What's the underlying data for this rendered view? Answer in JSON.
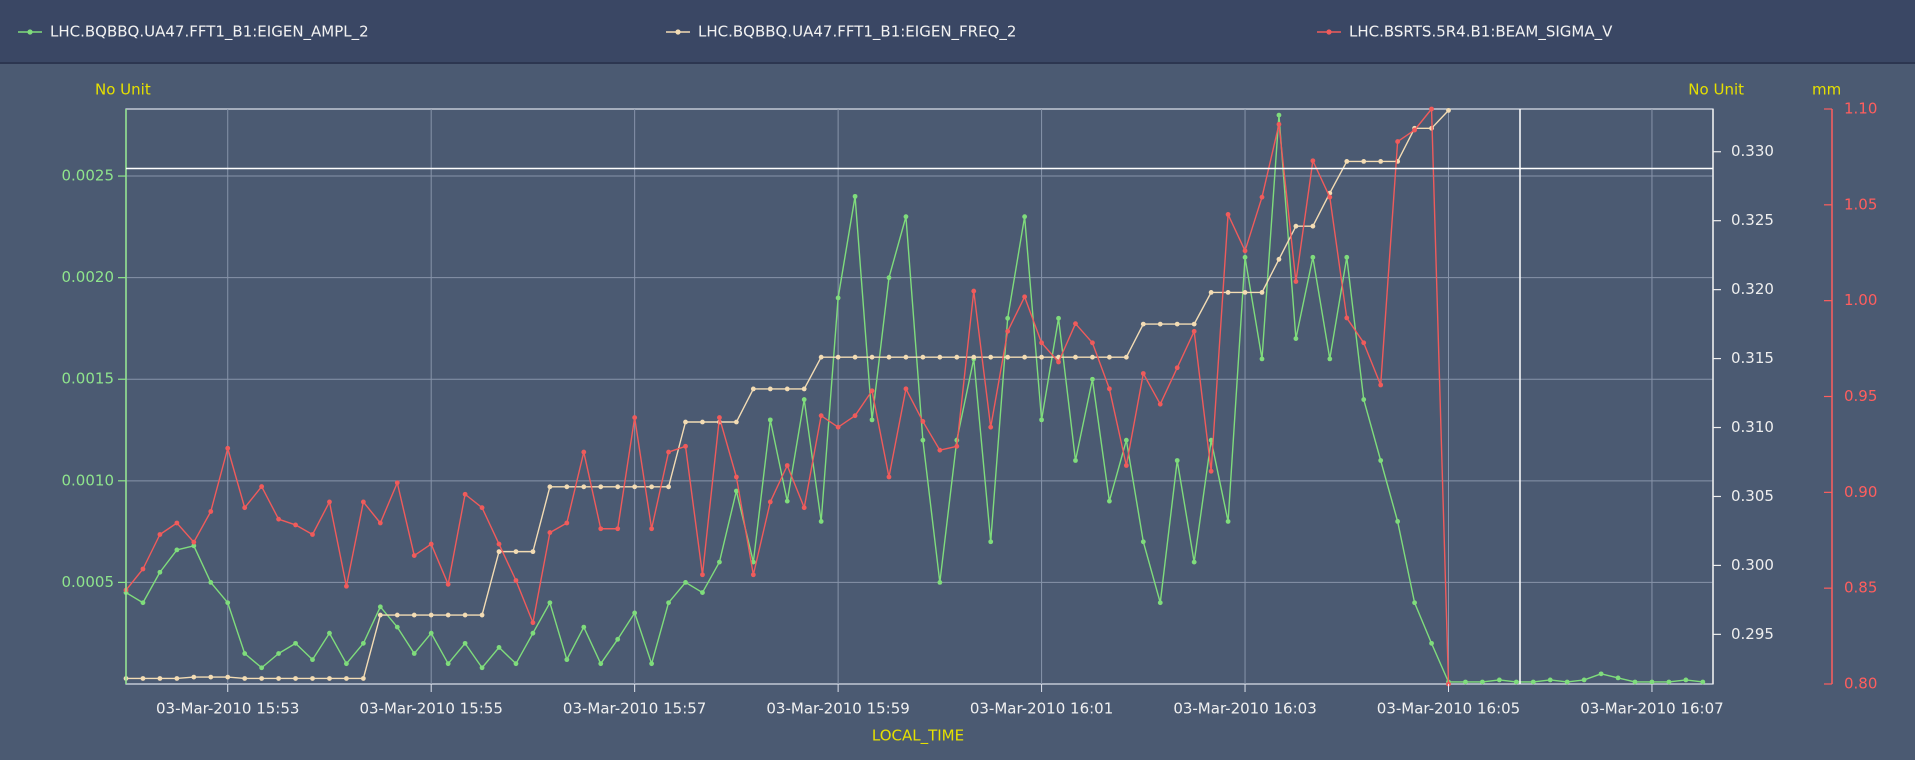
{
  "chart_data": {
    "type": "line",
    "xlabel": "LOCAL_TIME",
    "y_unit": "No Unit",
    "y2_unit": "No Unit",
    "y3_unit": "mm",
    "legend": "top",
    "grid": true,
    "xlim": [
      "15:52:00",
      "16:07:36"
    ],
    "xticks": [
      {
        "value": "15:53:00",
        "label": "03-Mar-2010 15:53"
      },
      {
        "value": "15:55:00",
        "label": "03-Mar-2010 15:55"
      },
      {
        "value": "15:57:00",
        "label": "03-Mar-2010 15:57"
      },
      {
        "value": "15:59:00",
        "label": "03-Mar-2010 15:59"
      },
      {
        "value": "16:01:00",
        "label": "03-Mar-2010 16:01"
      },
      {
        "value": "16:03:00",
        "label": "03-Mar-2010 16:03"
      },
      {
        "value": "16:05:00",
        "label": "03-Mar-2010 16:05"
      },
      {
        "value": "16:07:00",
        "label": "03-Mar-2010 16:07"
      }
    ],
    "ylim": [
      0,
      0.00283
    ],
    "yticks": [
      0.0005,
      {
        "value": 0.001,
        "label": "0.0010"
      },
      0.0015,
      {
        "value": 0.002,
        "label": "0.0020"
      },
      0.0025
    ],
    "y2lim": [
      0.2914,
      0.3331
    ],
    "y2ticks": [
      0.295,
      {
        "value": 0.3,
        "label": "0.300"
      },
      0.305,
      {
        "value": 0.31,
        "label": "0.310"
      },
      0.315,
      {
        "value": 0.32,
        "label": "0.320"
      },
      0.325,
      {
        "value": 0.33,
        "label": "0.330"
      }
    ],
    "y3lim": [
      0.8,
      1.1
    ],
    "y3ticks": [
      {
        "value": 0.8,
        "label": "0.80"
      },
      0.85,
      {
        "value": 0.9,
        "label": "0.90"
      },
      0.95,
      {
        "value": 1,
        "label": "1.00"
      },
      1.05,
      {
        "value": 1.1,
        "label": "1.10"
      }
    ],
    "x": [
      "15:52:00",
      "15:52:10",
      "15:52:20",
      "15:52:30",
      "15:52:40",
      "15:52:50",
      "15:53:00",
      "15:53:10",
      "15:53:20",
      "15:53:30",
      "15:53:40",
      "15:53:50",
      "15:54:00",
      "15:54:10",
      "15:54:20",
      "15:54:30",
      "15:54:40",
      "15:54:50",
      "15:55:00",
      "15:55:10",
      "15:55:20",
      "15:55:30",
      "15:55:40",
      "15:55:50",
      "15:56:00",
      "15:56:10",
      "15:56:20",
      "15:56:30",
      "15:56:40",
      "15:56:50",
      "15:57:00",
      "15:57:10",
      "15:57:20",
      "15:57:30",
      "15:57:40",
      "15:57:50",
      "15:58:00",
      "15:58:10",
      "15:58:20",
      "15:58:30",
      "15:58:40",
      "15:58:50",
      "15:59:00",
      "15:59:10",
      "15:59:20",
      "15:59:30",
      "15:59:40",
      "15:59:50",
      "16:00:00",
      "16:00:10",
      "16:00:20",
      "16:00:30",
      "16:00:40",
      "16:00:50",
      "16:01:00",
      "16:01:10",
      "16:01:20",
      "16:01:30",
      "16:01:40",
      "16:01:50",
      "16:02:00",
      "16:02:10",
      "16:02:20",
      "16:02:30",
      "16:02:40",
      "16:02:50",
      "16:03:00",
      "16:03:10",
      "16:03:20",
      "16:03:30",
      "16:03:40",
      "16:03:50",
      "16:04:00",
      "16:04:10",
      "16:04:20",
      "16:04:30",
      "16:04:40",
      "16:04:50",
      "16:05:00",
      "16:05:10",
      "16:05:20",
      "16:05:30",
      "16:05:40",
      "16:05:50",
      "16:06:00",
      "16:06:10",
      "16:06:20",
      "16:06:30",
      "16:06:40",
      "16:06:50",
      "16:07:00",
      "16:07:10",
      "16:07:20",
      "16:07:30"
    ],
    "series": [
      {
        "name": "LHC.BQBBQ.UA47.FFT1_B1:EIGEN_AMPL_2",
        "color": "#7fdc7c",
        "axis": "y",
        "values": [
          0.00045,
          0.0004,
          0.00055,
          0.00066,
          0.00068,
          0.0005,
          0.0004,
          0.00015,
          8e-05,
          0.00015,
          0.0002,
          0.00012,
          0.00025,
          0.0001,
          0.0002,
          0.00038,
          0.00028,
          0.00015,
          0.00025,
          0.0001,
          0.0002,
          8e-05,
          0.00018,
          0.0001,
          0.00025,
          0.0004,
          0.00012,
          0.00028,
          0.0001,
          0.00022,
          0.00035,
          0.0001,
          0.0004,
          0.0005,
          0.00045,
          0.0006,
          0.00095,
          0.0006,
          0.0013,
          0.0009,
          0.0014,
          0.0008,
          0.0019,
          0.0024,
          0.0013,
          0.002,
          0.0023,
          0.0012,
          0.0005,
          0.0012,
          0.0016,
          0.0007,
          0.0018,
          0.0023,
          0.0013,
          0.0018,
          0.0011,
          0.0015,
          0.0009,
          0.0012,
          0.0007,
          0.0004,
          0.0011,
          0.0006,
          0.0012,
          0.0008,
          0.0021,
          0.0016,
          0.0028,
          0.0017,
          0.0021,
          0.0016,
          0.0021,
          0.0014,
          0.0011,
          0.0008,
          0.0004,
          0.0002,
          1e-05,
          1e-05,
          1e-05,
          2e-05,
          1e-05,
          1e-05,
          2e-05,
          1e-05,
          2e-05,
          5e-05,
          3e-05,
          1e-05,
          1e-05,
          1e-05,
          2e-05,
          1e-05
        ]
      },
      {
        "name": "LHC.BQBBQ.UA47.FFT1_B1:EIGEN_FREQ_2",
        "color": "#f3dcb4",
        "axis": "y2",
        "values": [
          0.2918,
          0.2918,
          0.2918,
          0.2918,
          0.2919,
          0.2919,
          0.2919,
          0.2918,
          0.2918,
          0.2918,
          0.2918,
          0.2918,
          0.2918,
          0.2918,
          0.2918,
          0.2964,
          0.2964,
          0.2964,
          0.2964,
          0.2964,
          0.2964,
          0.2964,
          0.301,
          0.301,
          0.301,
          0.3057,
          0.3057,
          0.3057,
          0.3057,
          0.3057,
          0.3057,
          0.3057,
          0.3057,
          0.3104,
          0.3104,
          0.3104,
          0.3104,
          0.3128,
          0.3128,
          0.3128,
          0.3128,
          0.3151,
          0.3151,
          0.3151,
          0.3151,
          0.3151,
          0.3151,
          0.3151,
          0.3151,
          0.3151,
          0.3151,
          0.3151,
          0.3151,
          0.3151,
          0.3151,
          0.3151,
          0.3151,
          0.3151,
          0.3151,
          0.3151,
          0.3175,
          0.3175,
          0.3175,
          0.3175,
          0.3198,
          0.3198,
          0.3198,
          0.3198,
          0.3222,
          0.3246,
          0.3246,
          0.327,
          0.3293,
          0.3293,
          0.3293,
          0.3293,
          0.3317,
          0.3317,
          0.333,
          null,
          null,
          null,
          null,
          null,
          null,
          null,
          null,
          null,
          null,
          null,
          null,
          null,
          null,
          null
        ]
      },
      {
        "name": "LHC.BSRTS.5R4.B1:BEAM_SIGMA_V",
        "color": "#f05b5b",
        "axis": "y3",
        "values": [
          0.849,
          0.86,
          0.878,
          0.884,
          0.874,
          0.89,
          0.923,
          0.892,
          0.903,
          0.886,
          0.883,
          0.878,
          0.895,
          0.851,
          0.895,
          0.884,
          0.905,
          0.867,
          0.873,
          0.852,
          0.899,
          0.892,
          0.873,
          0.854,
          0.832,
          0.879,
          0.884,
          0.921,
          0.881,
          0.881,
          0.939,
          0.881,
          0.921,
          0.924,
          0.857,
          0.939,
          0.908,
          0.857,
          0.895,
          0.914,
          0.892,
          0.94,
          0.934,
          0.94,
          0.953,
          0.908,
          0.954,
          0.937,
          0.922,
          0.924,
          1.005,
          0.934,
          0.984,
          1.002,
          0.978,
          0.968,
          0.988,
          0.978,
          0.954,
          0.914,
          0.962,
          0.946,
          0.965,
          0.984,
          0.911,
          1.045,
          1.026,
          1.054,
          1.092,
          1.01,
          1.073,
          1.054,
          0.991,
          0.978,
          0.956,
          1.083,
          1.089,
          1.1,
          0.8,
          null,
          null,
          null,
          null,
          null,
          null,
          null,
          null,
          null,
          null,
          null,
          null,
          null,
          null,
          null
        ]
      }
    ]
  }
}
